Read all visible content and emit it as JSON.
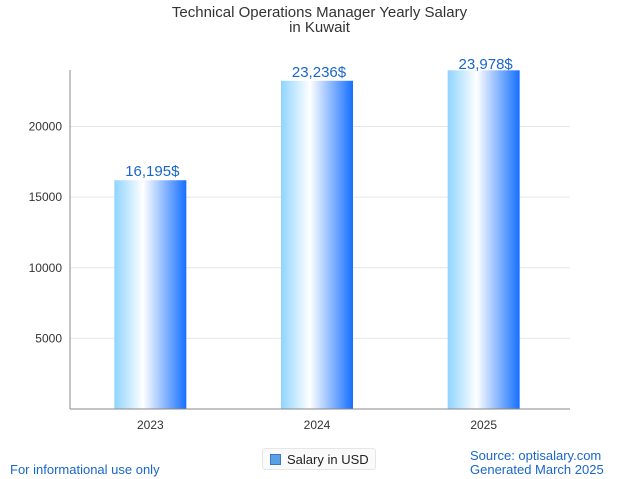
{
  "title": {
    "line1": "Technical Operations Manager Yearly Salary",
    "line2": "in Kuwait"
  },
  "chart_data": {
    "type": "bar",
    "title": "Technical Operations Manager Yearly Salary in Kuwait",
    "categories": [
      "2023",
      "2024",
      "2025"
    ],
    "series": [
      {
        "name": "Salary in USD",
        "values": [
          16195,
          23236,
          23978
        ]
      }
    ],
    "data_labels": [
      "16,195$",
      "23,236$",
      "23,978$"
    ],
    "yticks": [
      5000,
      10000,
      15000,
      20000
    ],
    "ylim": [
      0,
      24000
    ],
    "grid": true,
    "legend_placement": "bottom-center"
  },
  "legend": {
    "label": "Salary in USD"
  },
  "footer": {
    "left": "For informational use only",
    "source": "Source: optisalary.com",
    "generated": "Generated March 2025"
  },
  "colors": {
    "bar_light": "#bfe6ff",
    "bar_mid": "#ffffff",
    "bar_dark": "#1570ff",
    "label": "#1a66cc",
    "grid": "#e6e6e6",
    "axis": "#888888"
  }
}
